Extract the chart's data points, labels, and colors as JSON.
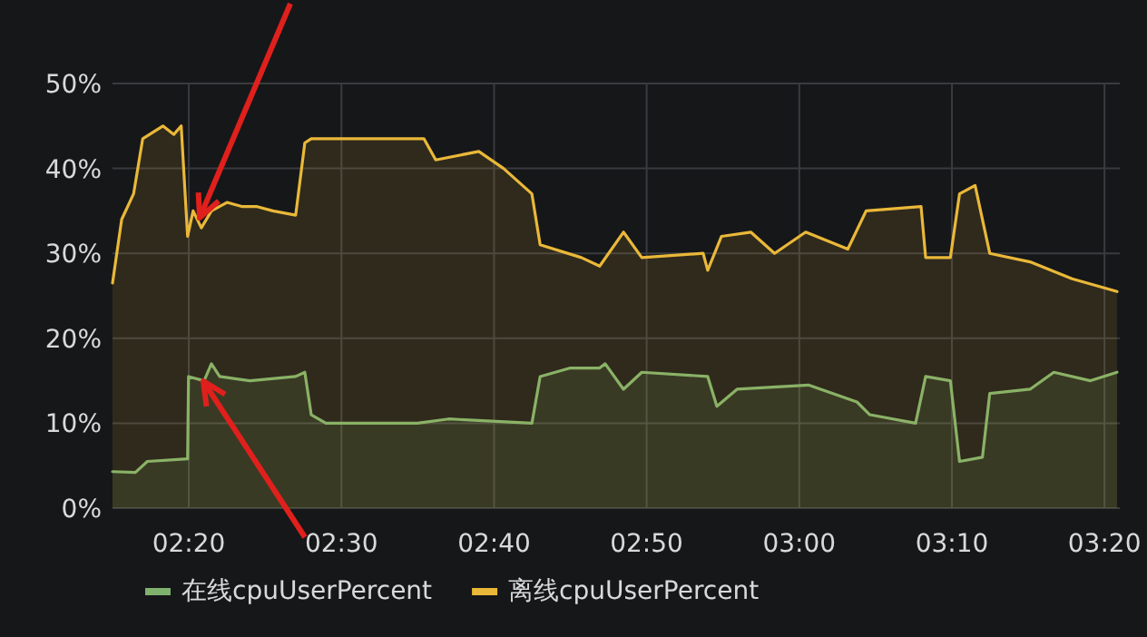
{
  "chart_data": {
    "type": "area",
    "xlim": [
      2.25,
      3.35
    ],
    "xticks": [
      {
        "value": 2.3333,
        "label": "02:20"
      },
      {
        "value": 2.5,
        "label": "02:30"
      },
      {
        "value": 2.6667,
        "label": "02:40"
      },
      {
        "value": 2.8333,
        "label": "02:50"
      },
      {
        "value": 3,
        "label": "03:00"
      },
      {
        "value": 3.1667,
        "label": "03:10"
      },
      {
        "value": 3.3333,
        "label": "03:20"
      }
    ],
    "ylim": [
      0,
      50
    ],
    "yticks": [
      {
        "value": 0,
        "label": "0%"
      },
      {
        "value": 10,
        "label": "10%"
      },
      {
        "value": 20,
        "label": "20%"
      },
      {
        "value": 30,
        "label": "30%"
      },
      {
        "value": 40,
        "label": "40%"
      },
      {
        "value": 50,
        "label": "50%"
      }
    ],
    "grid": true,
    "legend": "bottom",
    "line_style": "solid",
    "marker": "none",
    "series": [
      {
        "name": "在线cpuUserPercent",
        "color": "#7eb26d",
        "x": [
          2.25,
          2.275,
          2.288,
          2.332,
          2.333,
          2.35,
          2.358,
          2.367,
          2.4,
          2.45,
          2.46,
          2.467,
          2.483,
          2.55,
          2.583,
          2.617,
          2.708,
          2.717,
          2.75,
          2.782,
          2.788,
          2.808,
          2.828,
          2.9,
          2.91,
          2.932,
          3.01,
          3.063,
          3.077,
          3.127,
          3.138,
          3.165,
          3.175,
          3.2,
          3.208,
          3.252,
          3.278,
          3.318,
          3.347
        ],
        "values": [
          4.3,
          4.2,
          5.5,
          5.8,
          15.5,
          15,
          17,
          15.5,
          15,
          15.5,
          16,
          11,
          10,
          10,
          10,
          10.5,
          10,
          15.5,
          16.5,
          16.5,
          17,
          14,
          16,
          15.5,
          12,
          14,
          14.5,
          12.5,
          11,
          10,
          15.5,
          15,
          5.5,
          6,
          13.5,
          14,
          16,
          15,
          16
        ]
      },
      {
        "name": "离线cpuUserPercent",
        "color": "#eab839",
        "x": [
          2.25,
          2.26,
          2.273,
          2.283,
          2.305,
          2.317,
          2.325,
          2.332,
          2.338,
          2.347,
          2.358,
          2.375,
          2.392,
          2.408,
          2.425,
          2.45,
          2.46,
          2.467,
          2.59,
          2.603,
          2.65,
          2.677,
          2.708,
          2.717,
          2.762,
          2.782,
          2.808,
          2.828,
          2.895,
          2.9,
          2.915,
          2.947,
          2.973,
          3.007,
          3.053,
          3.073,
          3.133,
          3.138,
          3.165,
          3.175,
          3.192,
          3.208,
          3.252,
          3.298,
          3.347
        ],
        "values": [
          26.5,
          34,
          37,
          43.5,
          45,
          44,
          45,
          32,
          35,
          33,
          35,
          36,
          35.5,
          35.5,
          35,
          34.5,
          43,
          43.5,
          43.5,
          41,
          42,
          40,
          37,
          31,
          29.5,
          28.5,
          32.5,
          29.5,
          30,
          28,
          32,
          32.5,
          30,
          32.5,
          30.5,
          35,
          35.5,
          29.5,
          29.5,
          37,
          38,
          30,
          29,
          27,
          25.5
        ]
      }
    ]
  }
}
